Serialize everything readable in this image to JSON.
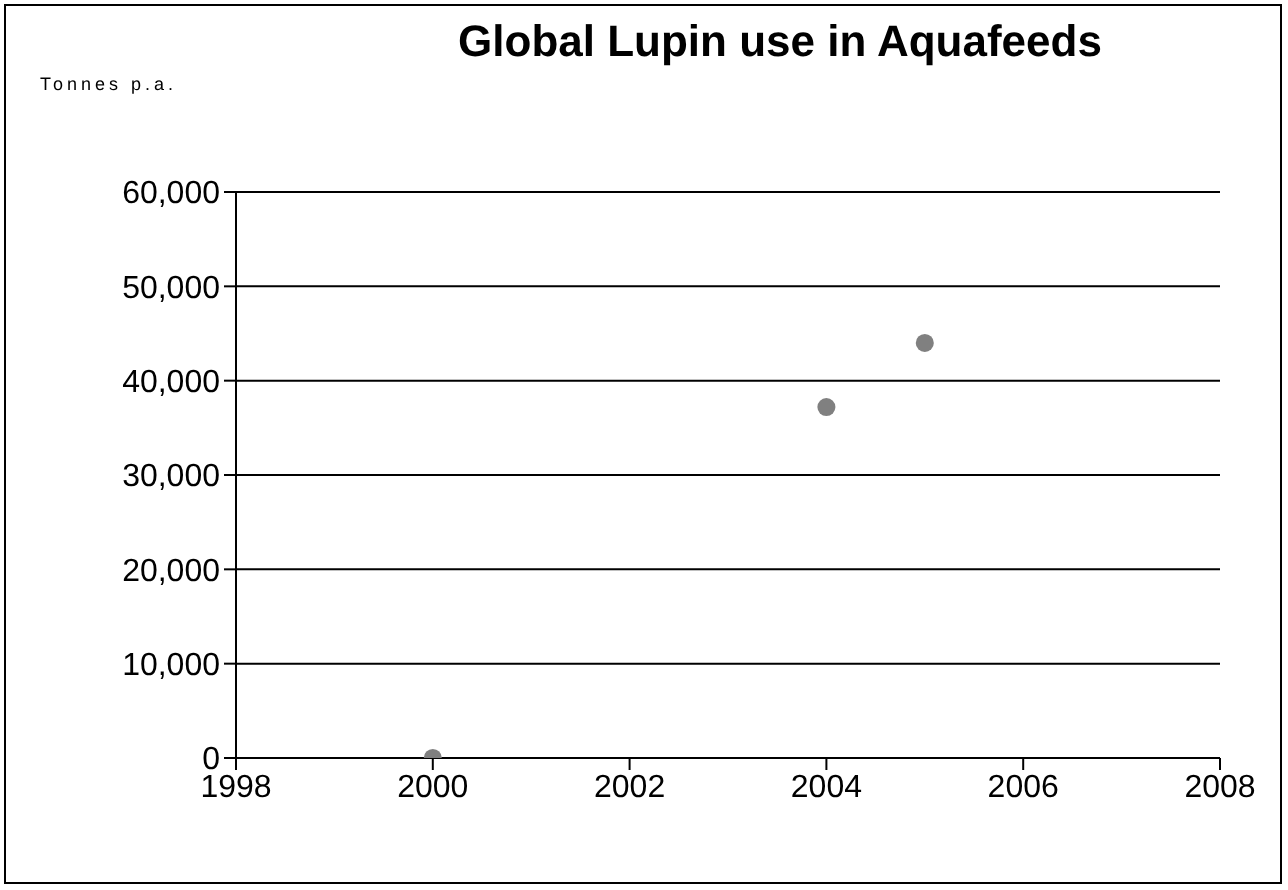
{
  "chart_data": {
    "type": "scatter",
    "title": "Global Lupin use in Aquafeeds",
    "ylabel": "Tonnes p.a.",
    "x": [
      2000,
      2004,
      2005
    ],
    "series": [
      {
        "color": "#808080",
        "values": [
          0,
          37200,
          44000
        ]
      }
    ],
    "xlim": [
      1998,
      2008
    ],
    "xticks": [
      1998,
      2000,
      2002,
      2004,
      2006,
      2008
    ],
    "ylim": [
      0,
      60000
    ],
    "yticks": [
      0,
      {
        "value": 10000,
        "label": "10,000"
      },
      {
        "value": 20000,
        "label": "20,000"
      },
      {
        "value": 30000,
        "label": "30,000"
      },
      {
        "value": 40000,
        "label": "40,000"
      },
      {
        "value": 50000,
        "label": "50,000"
      },
      {
        "value": 60000,
        "label": "60,000"
      }
    ],
    "grid": "y",
    "marker": "circle"
  }
}
